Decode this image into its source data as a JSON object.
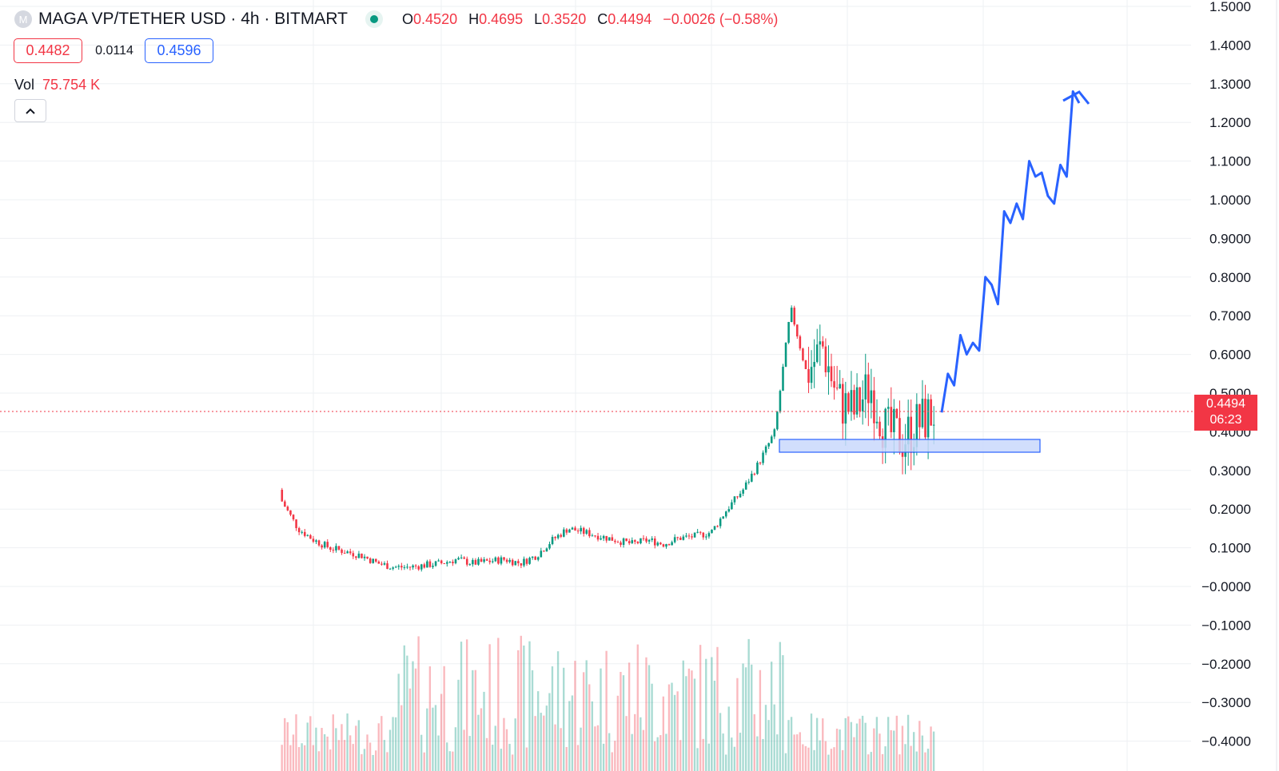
{
  "header": {
    "symbol_logo_letter": "M",
    "title": "MAGA VP/TETHER USD · 4h · BITMART",
    "market_status": "open",
    "ohlc": [
      {
        "key": "O",
        "value": "0.4520"
      },
      {
        "key": "H",
        "value": "0.4695"
      },
      {
        "key": "L",
        "value": "0.3520"
      },
      {
        "key": "C",
        "value": "0.4494"
      },
      {
        "key": "",
        "value": "−0.0026 (−0.58%)"
      }
    ]
  },
  "quote": {
    "bid": "0.4482",
    "spread": "0.0114",
    "ask": "0.4596"
  },
  "volume": {
    "label": "Vol",
    "value": "75.754 K"
  },
  "price_tag": {
    "price": "0.4494",
    "countdown": "06:23"
  },
  "colors": {
    "up": "#089981",
    "down": "#f23645",
    "drawing": "#2962ff",
    "zone_fill": "#c9d8fb",
    "grid": "#eef0f3"
  },
  "chart_data": {
    "type": "candlestick",
    "y_axis_labels": [
      "1.5000",
      "1.4000",
      "1.3000",
      "1.2000",
      "1.1000",
      "1.0000",
      "0.9000",
      "0.8000",
      "0.7000",
      "0.6000",
      "0.5000",
      "0.4000",
      "0.3000",
      "0.2000",
      "0.1000",
      "−0.0000",
      "−0.1000",
      "−0.2000",
      "−0.3000",
      "−0.4000"
    ],
    "ylim": [
      -0.45,
      1.52
    ],
    "current_price": 0.4494,
    "series": [
      {
        "name": "price",
        "approx_closes": [
          0.22,
          0.15,
          0.12,
          0.1,
          0.09,
          0.08,
          0.06,
          0.05,
          0.05,
          0.055,
          0.06,
          0.07,
          0.06,
          0.065,
          0.07,
          0.06,
          0.08,
          0.12,
          0.15,
          0.14,
          0.13,
          0.12,
          0.11,
          0.12,
          0.11,
          0.125,
          0.13,
          0.14,
          0.2,
          0.25,
          0.32,
          0.4,
          0.72,
          0.55,
          0.62,
          0.48,
          0.45,
          0.52,
          0.4,
          0.38,
          0.42,
          0.45
        ]
      }
    ],
    "support_zone": [
      0.35,
      0.385
    ],
    "projection": [
      0.45,
      0.55,
      0.52,
      0.65,
      0.6,
      0.63,
      0.61,
      0.8,
      0.78,
      0.73,
      0.97,
      0.94,
      0.99,
      0.95,
      1.1,
      1.06,
      1.07,
      1.01,
      0.99,
      1.09,
      1.06,
      1.28,
      1.25
    ],
    "volume": "bars below price, heights unlabeled"
  }
}
